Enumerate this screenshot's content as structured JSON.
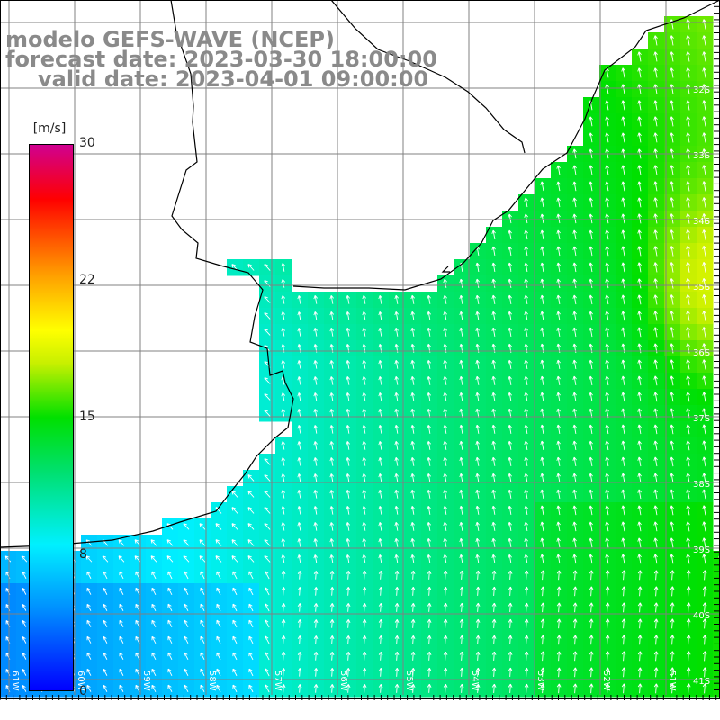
{
  "title": {
    "line1": "modelo GEFS-WAVE (NCEP)",
    "line2": "forecast date: 2023-03-30 18:00:00",
    "line3": "valid date: 2023-04-01 09:00:00"
  },
  "colorbar": {
    "unit": "[m/s]",
    "ticks": [
      "30",
      "22",
      "15",
      "8",
      "0"
    ],
    "colors": [
      "#0000ff",
      "#0090ff",
      "#00f0ff",
      "#00e070",
      "#00e000",
      "#c8f000",
      "#ffff00",
      "#ffa000",
      "#ff3000",
      "#d00090"
    ]
  },
  "map": {
    "lat_labels": [
      "32S",
      "33S",
      "34S",
      "35S",
      "36S",
      "37S",
      "38S",
      "39S",
      "40S",
      "41S"
    ],
    "lon_labels": [
      "61W",
      "60W",
      "59W",
      "58W",
      "57W",
      "56W",
      "55W",
      "54W",
      "53W",
      "52W",
      "51W"
    ],
    "extent": {
      "lon": [
        -61.5,
        -50.5
      ],
      "lat": [
        -41.5,
        -30.5
      ]
    },
    "colors": {
      "land": "#ffffff",
      "grid": "#808080",
      "coastline": "#000000",
      "arrows": "#ffffff"
    }
  }
}
